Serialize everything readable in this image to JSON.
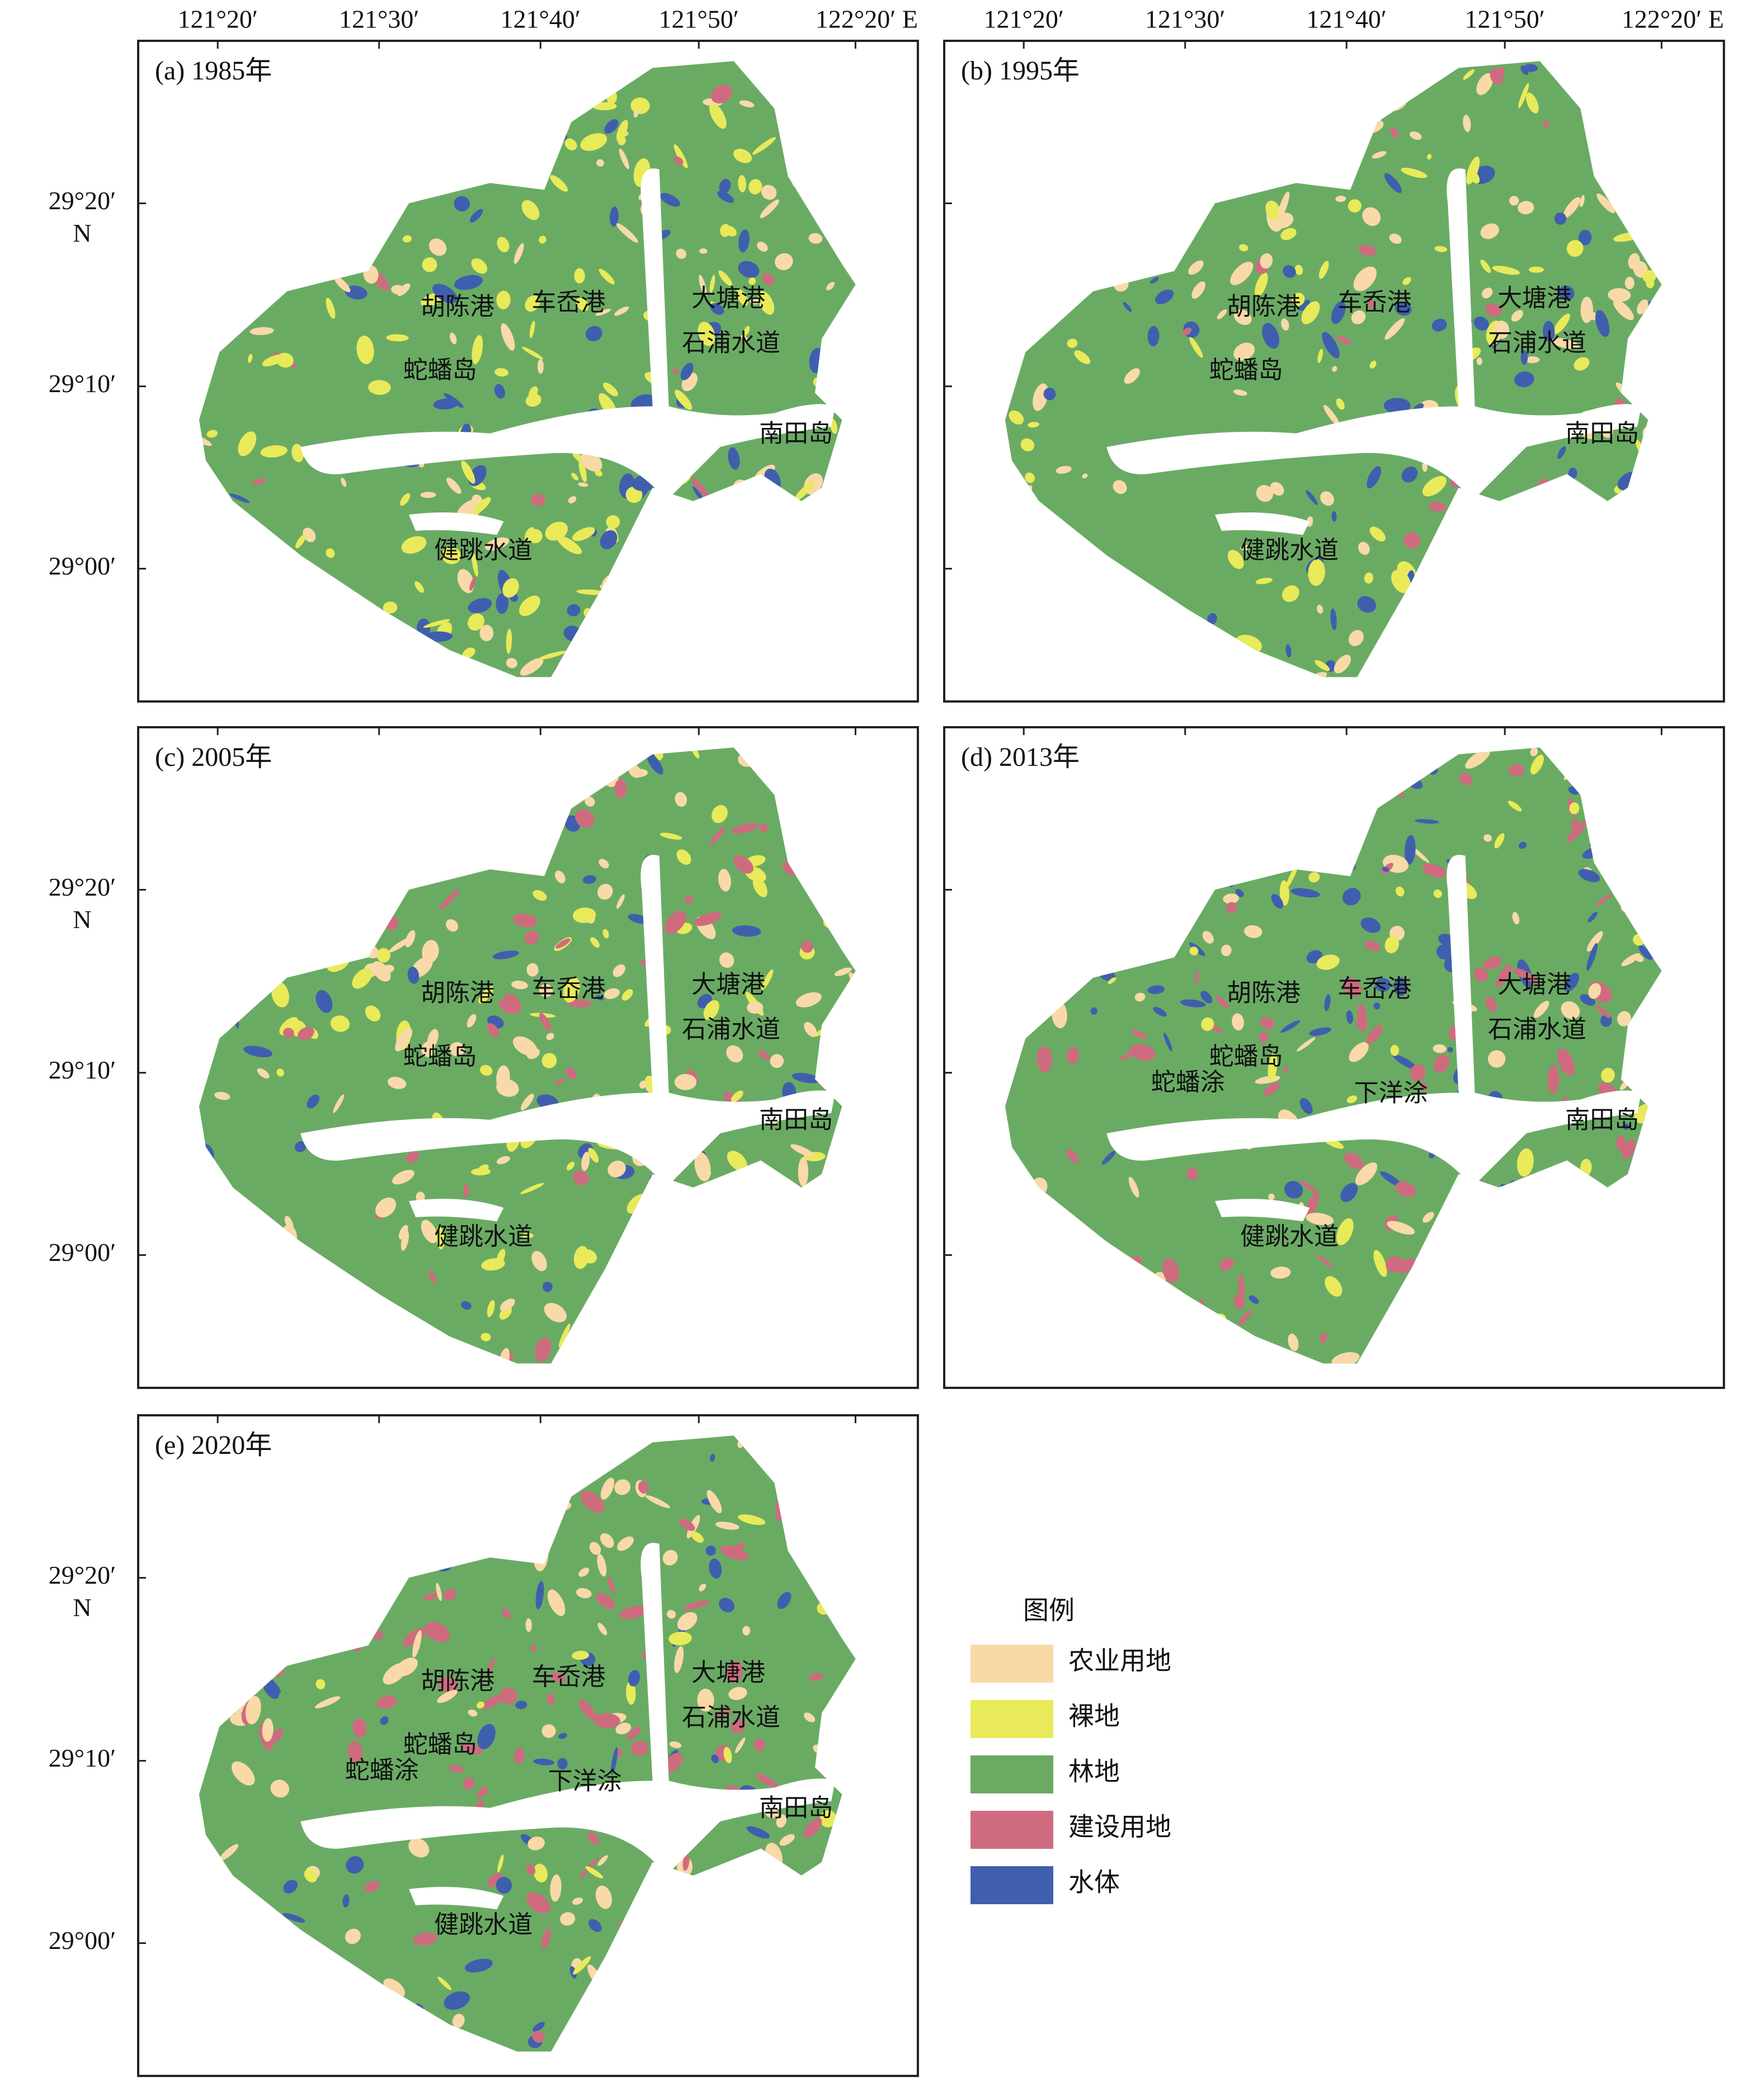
{
  "lon_ticks": [
    "121°20′",
    "121°30′",
    "121°40′",
    "121°50′",
    "122°20′ E"
  ],
  "lat_ticks": [
    "29°20′",
    "29°10′",
    "29°00′"
  ],
  "lat_unit": "N",
  "panels": [
    {
      "title": "(a) 1985年",
      "places": [
        "胡陈港",
        "车岙港",
        "大塘港",
        "石浦水道",
        "蛇蟠岛",
        "南田岛",
        "健跳水道"
      ]
    },
    {
      "title": "(b) 1995年",
      "places": [
        "胡陈港",
        "车岙港",
        "大塘港",
        "石浦水道",
        "蛇蟠岛",
        "南田岛",
        "健跳水道"
      ]
    },
    {
      "title": "(c) 2005年",
      "places": [
        "胡陈港",
        "车岙港",
        "大塘港",
        "石浦水道",
        "蛇蟠岛",
        "南田岛",
        "健跳水道"
      ]
    },
    {
      "title": "(d) 2013年",
      "places": [
        "胡陈港",
        "车岙港",
        "大塘港",
        "石浦水道",
        "蛇蟠岛",
        "南田岛",
        "健跳水道",
        "蛇蟠涂",
        "下洋涂"
      ]
    },
    {
      "title": "(e) 2020年",
      "places": [
        "胡陈港",
        "车岙港",
        "大塘港",
        "石浦水道",
        "蛇蟠岛",
        "南田岛",
        "健跳水道",
        "蛇蟠涂",
        "下洋涂"
      ]
    }
  ],
  "legend": {
    "title": "图例",
    "items": [
      {
        "label": "农业用地",
        "color": "#f9d9a8"
      },
      {
        "label": "裸地",
        "color": "#e8ea5a"
      },
      {
        "label": "林地",
        "color": "#6aab64"
      },
      {
        "label": "建设用地",
        "color": "#cf6b7f"
      },
      {
        "label": "水体",
        "color": "#3f5fae"
      }
    ]
  }
}
